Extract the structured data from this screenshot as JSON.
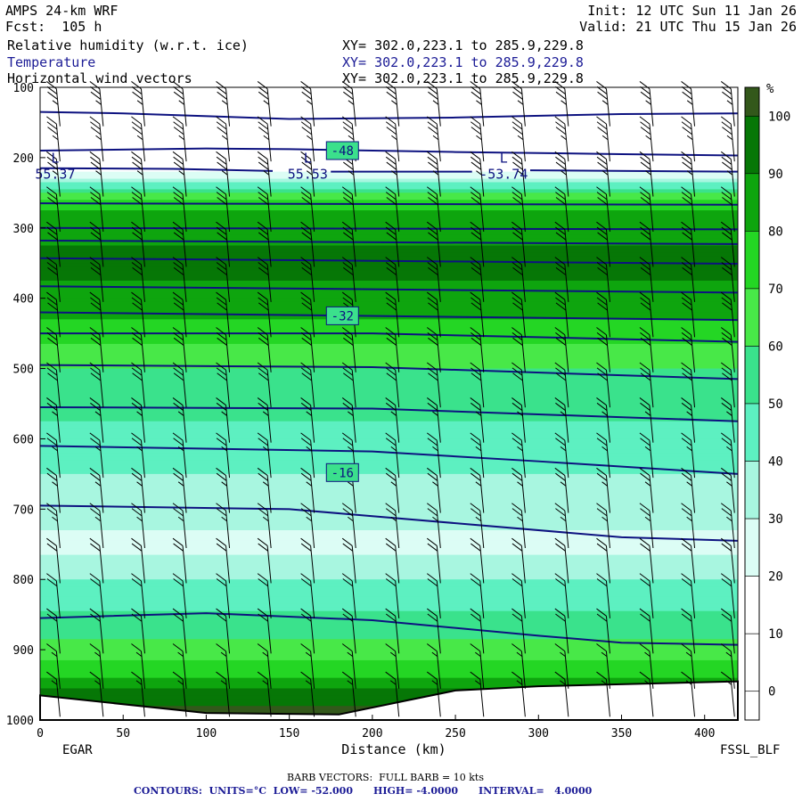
{
  "header": {
    "model": "AMPS 24-km WRF",
    "forecast": "Fcst:  105 h",
    "init": "Init: 12 UTC Sun 11 Jan 26",
    "valid": "Valid: 21 UTC Thu 15 Jan 26",
    "fields": [
      {
        "label": "Relative humidity (w.r.t. ice)",
        "xy": "XY= 302.0,223.1 to 285.9,229.8",
        "color": "#000000"
      },
      {
        "label": "Temperature",
        "xy": "XY= 302.0,223.1 to 285.9,229.8",
        "color": "#1c1c96"
      },
      {
        "label": "Horizontal wind vectors",
        "xy": "XY= 302.0,223.1 to 285.9,229.8",
        "color": "#000000"
      }
    ]
  },
  "footer": {
    "barb_note": "BARB VECTORS:  FULL BARB = 10 kts",
    "contour_note": "CONTOURS:  UNITS=°C  LOW= -52.000      HIGH= -4.0000      INTERVAL=   4.0000"
  },
  "chart_data": {
    "type": "heatmap",
    "title": "Relative humidity (w.r.t. ice)",
    "xlabel": "Distance (km)",
    "ylabel": "",
    "x_endpoints": [
      "EGAR",
      "FSSL_BLF"
    ],
    "xlim": [
      0,
      420
    ],
    "ylim": [
      1000,
      100
    ],
    "x_ticks": [
      "0",
      "50",
      "100",
      "150",
      "200",
      "250",
      "300",
      "350",
      "400"
    ],
    "y_ticks": [
      "100",
      "200",
      "300",
      "400",
      "500",
      "600",
      "700",
      "800",
      "900",
      "1000"
    ],
    "colorbar": {
      "units": "%",
      "ticks": [
        "100",
        "90",
        "80",
        "70",
        "60",
        "50",
        "40",
        "30",
        "20",
        "10",
        "0"
      ],
      "levels": [
        {
          "range": [
            100,
            105
          ],
          "color": "#33581b"
        },
        {
          "range": [
            90,
            100
          ],
          "color": "#067706"
        },
        {
          "range": [
            80,
            90
          ],
          "color": "#0ea50e"
        },
        {
          "range": [
            70,
            80
          ],
          "color": "#24d624"
        },
        {
          "range": [
            60,
            70
          ],
          "color": "#48e848"
        },
        {
          "range": [
            50,
            60
          ],
          "color": "#3ae28c"
        },
        {
          "range": [
            40,
            50
          ],
          "color": "#5df0c1"
        },
        {
          "range": [
            30,
            40
          ],
          "color": "#a8f6e0"
        },
        {
          "range": [
            20,
            30
          ],
          "color": "#dcfdf5"
        },
        {
          "range": [
            10,
            20
          ],
          "color": "#ffffff"
        },
        {
          "range": [
            0,
            10
          ],
          "color": "#ffffff"
        },
        {
          "range": [
            -5,
            0
          ],
          "color": "#ffffff"
        }
      ]
    },
    "rh_profile": [
      {
        "p": 100,
        "rh": 5
      },
      {
        "p": 200,
        "rh": 8
      },
      {
        "p": 225,
        "rh": 25
      },
      {
        "p": 240,
        "rh": 45
      },
      {
        "p": 260,
        "rh": 70
      },
      {
        "p": 285,
        "rh": 85
      },
      {
        "p": 350,
        "rh": 93
      },
      {
        "p": 410,
        "rh": 85
      },
      {
        "p": 450,
        "rh": 75
      },
      {
        "p": 500,
        "rh": 60
      },
      {
        "p": 560,
        "rh": 52
      },
      {
        "p": 620,
        "rh": 45
      },
      {
        "p": 700,
        "rh": 32
      },
      {
        "p": 760,
        "rh": 28
      },
      {
        "p": 820,
        "rh": 45
      },
      {
        "p": 880,
        "rh": 58
      },
      {
        "p": 930,
        "rh": 75
      },
      {
        "p": 960,
        "rh": 92
      },
      {
        "p": 980,
        "rh": 100
      }
    ],
    "terrain": [
      {
        "x": 0,
        "p": 965
      },
      {
        "x": 100,
        "p": 990
      },
      {
        "x": 180,
        "p": 992
      },
      {
        "x": 215,
        "p": 975
      },
      {
        "x": 250,
        "p": 958
      },
      {
        "x": 300,
        "p": 952
      },
      {
        "x": 420,
        "p": 945
      }
    ],
    "temperature_contours": [
      {
        "label": "-52",
        "points": [
          [
            0,
            135
          ],
          [
            50,
            137
          ],
          [
            150,
            145
          ],
          [
            250,
            143
          ],
          [
            350,
            138
          ],
          [
            420,
            137
          ]
        ]
      },
      {
        "label": "-48",
        "points": [
          [
            0,
            190
          ],
          [
            100,
            187
          ],
          [
            150,
            188
          ],
          [
            250,
            192
          ],
          [
            350,
            195
          ],
          [
            420,
            197
          ]
        ]
      },
      {
        "label": "-52",
        "points": [
          [
            0,
            215
          ],
          [
            80,
            216
          ],
          [
            140,
            219
          ]
        ]
      },
      {
        "label": "-52",
        "points": [
          [
            175,
            220
          ],
          [
            260,
            220
          ]
        ]
      },
      {
        "label": "-52",
        "points": [
          [
            295,
            218
          ],
          [
            420,
            220
          ]
        ]
      },
      {
        "label": "-48",
        "points": [
          [
            0,
            265
          ],
          [
            420,
            267
          ]
        ]
      },
      {
        "label": "-44",
        "points": [
          [
            0,
            300
          ],
          [
            420,
            302
          ]
        ]
      },
      {
        "label": "-40",
        "points": [
          [
            0,
            318
          ],
          [
            420,
            323
          ]
        ]
      },
      {
        "label": "-36",
        "points": [
          [
            0,
            343
          ],
          [
            420,
            351
          ]
        ]
      },
      {
        "label": "-32",
        "points": [
          [
            0,
            383
          ],
          [
            420,
            392
          ]
        ]
      },
      {
        "label": "-28",
        "points": [
          [
            0,
            420
          ],
          [
            420,
            431
          ]
        ]
      },
      {
        "label": "-24",
        "points": [
          [
            0,
            450
          ],
          [
            200,
            450
          ],
          [
            420,
            462
          ]
        ]
      },
      {
        "label": "-20",
        "points": [
          [
            0,
            495
          ],
          [
            200,
            498
          ],
          [
            420,
            515
          ]
        ]
      },
      {
        "label": "-16",
        "points": [
          [
            0,
            555
          ],
          [
            200,
            557
          ],
          [
            420,
            575
          ]
        ]
      },
      {
        "label": "-12",
        "points": [
          [
            0,
            610
          ],
          [
            200,
            618
          ],
          [
            300,
            632
          ],
          [
            420,
            650
          ]
        ]
      },
      {
        "label": "-8",
        "points": [
          [
            0,
            695
          ],
          [
            150,
            700
          ],
          [
            250,
            720
          ],
          [
            350,
            740
          ],
          [
            420,
            745
          ]
        ]
      },
      {
        "label": "-4",
        "points": [
          [
            0,
            855
          ],
          [
            100,
            848
          ],
          [
            200,
            858
          ],
          [
            300,
            880
          ],
          [
            350,
            890
          ],
          [
            420,
            893
          ]
        ]
      }
    ],
    "contour_labels": [
      {
        "text": "-48",
        "x": 182,
        "p": 190
      },
      {
        "text": "-32",
        "x": 182,
        "p": 425
      },
      {
        "text": "-16",
        "x": 182,
        "p": 648
      }
    ],
    "low_markers": [
      {
        "letter": "L",
        "value": "55.37",
        "x": 8,
        "p": 220
      },
      {
        "letter": "L",
        "value": "55.53",
        "x": 160,
        "p": 220
      },
      {
        "letter": "L",
        "value": "-53.74",
        "x": 278,
        "p": 220
      }
    ],
    "barb_columns_km": [
      12,
      38,
      63,
      88,
      114,
      139,
      165,
      190,
      216,
      241,
      267,
      292,
      318,
      343,
      369,
      394,
      418
    ],
    "barb_levels_hpa": [
      130,
      180,
      230,
      280,
      330,
      380,
      430,
      480,
      530,
      580,
      630,
      680,
      730,
      780,
      830,
      880,
      930,
      970
    ],
    "wind_kts": [
      {
        "p": 100,
        "spd": 35
      },
      {
        "p": 400,
        "spd": 30
      },
      {
        "p": 700,
        "spd": 25
      },
      {
        "p": 1000,
        "spd": 15
      }
    ]
  }
}
